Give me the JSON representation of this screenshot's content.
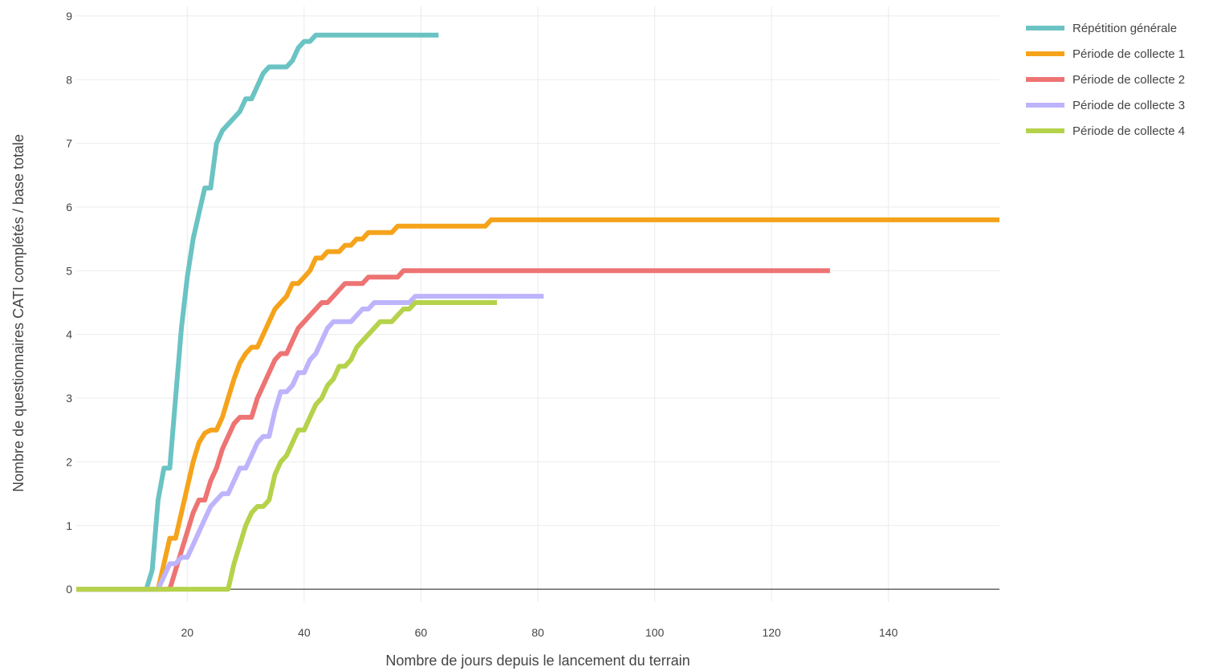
{
  "chart_data": {
    "type": "line",
    "title": "",
    "xlabel": "Nombre de jours depuis le lancement du terrain",
    "ylabel": "Nombre de questionnaires CATI complétés / base totale",
    "xlim": [
      1,
      159
    ],
    "ylim": [
      -0.2,
      9.15
    ],
    "xticks": [
      20,
      40,
      60,
      80,
      100,
      120,
      140
    ],
    "yticks": [
      0,
      1,
      2,
      3,
      4,
      5,
      6,
      7,
      8,
      9
    ],
    "grid": true,
    "legend_position": "top-right",
    "series": [
      {
        "name": "Répétition générale",
        "color": "#6bc3c3",
        "points": [
          [
            1,
            0
          ],
          [
            13,
            0
          ],
          [
            14,
            0.3
          ],
          [
            15,
            1.4
          ],
          [
            16,
            1.9
          ],
          [
            17,
            1.9
          ],
          [
            18,
            3.0
          ],
          [
            19,
            4.1
          ],
          [
            20,
            4.9
          ],
          [
            21,
            5.5
          ],
          [
            22,
            5.9
          ],
          [
            23,
            6.3
          ],
          [
            24,
            6.3
          ],
          [
            25,
            7.0
          ],
          [
            26,
            7.2
          ],
          [
            27,
            7.3
          ],
          [
            28,
            7.4
          ],
          [
            29,
            7.5
          ],
          [
            30,
            7.7
          ],
          [
            31,
            7.7
          ],
          [
            32,
            7.9
          ],
          [
            33,
            8.1
          ],
          [
            34,
            8.2
          ],
          [
            37,
            8.2
          ],
          [
            38,
            8.3
          ],
          [
            39,
            8.5
          ],
          [
            40,
            8.6
          ],
          [
            41,
            8.6
          ],
          [
            42,
            8.7
          ],
          [
            63,
            8.7
          ]
        ]
      },
      {
        "name": "Période de collecte 1",
        "color": "#f5a31b",
        "points": [
          [
            1,
            0
          ],
          [
            15,
            0
          ],
          [
            16,
            0.4
          ],
          [
            17,
            0.8
          ],
          [
            18,
            0.8
          ],
          [
            19,
            1.2
          ],
          [
            20,
            1.6
          ],
          [
            21,
            2.0
          ],
          [
            22,
            2.3
          ],
          [
            23,
            2.45
          ],
          [
            24,
            2.5
          ],
          [
            25,
            2.5
          ],
          [
            26,
            2.7
          ],
          [
            27,
            3.0
          ],
          [
            28,
            3.3
          ],
          [
            29,
            3.55
          ],
          [
            30,
            3.7
          ],
          [
            31,
            3.8
          ],
          [
            32,
            3.8
          ],
          [
            33,
            4.0
          ],
          [
            34,
            4.2
          ],
          [
            35,
            4.4
          ],
          [
            36,
            4.5
          ],
          [
            37,
            4.6
          ],
          [
            38,
            4.8
          ],
          [
            39,
            4.8
          ],
          [
            40,
            4.9
          ],
          [
            41,
            5.0
          ],
          [
            42,
            5.2
          ],
          [
            43,
            5.2
          ],
          [
            44,
            5.3
          ],
          [
            46,
            5.3
          ],
          [
            47,
            5.4
          ],
          [
            48,
            5.4
          ],
          [
            49,
            5.5
          ],
          [
            50,
            5.5
          ],
          [
            51,
            5.6
          ],
          [
            55,
            5.6
          ],
          [
            56,
            5.7
          ],
          [
            71,
            5.7
          ],
          [
            72,
            5.8
          ],
          [
            159,
            5.8
          ]
        ]
      },
      {
        "name": "Période de collecte 2",
        "color": "#ee7373",
        "points": [
          [
            1,
            0
          ],
          [
            17,
            0
          ],
          [
            18,
            0.3
          ],
          [
            19,
            0.6
          ],
          [
            20,
            0.9
          ],
          [
            21,
            1.2
          ],
          [
            22,
            1.4
          ],
          [
            23,
            1.4
          ],
          [
            24,
            1.7
          ],
          [
            25,
            1.9
          ],
          [
            26,
            2.2
          ],
          [
            27,
            2.4
          ],
          [
            28,
            2.6
          ],
          [
            29,
            2.7
          ],
          [
            31,
            2.7
          ],
          [
            32,
            3.0
          ],
          [
            33,
            3.2
          ],
          [
            34,
            3.4
          ],
          [
            35,
            3.6
          ],
          [
            36,
            3.7
          ],
          [
            37,
            3.7
          ],
          [
            38,
            3.9
          ],
          [
            39,
            4.1
          ],
          [
            40,
            4.2
          ],
          [
            41,
            4.3
          ],
          [
            42,
            4.4
          ],
          [
            43,
            4.5
          ],
          [
            44,
            4.5
          ],
          [
            45,
            4.6
          ],
          [
            46,
            4.7
          ],
          [
            47,
            4.8
          ],
          [
            50,
            4.8
          ],
          [
            51,
            4.9
          ],
          [
            56,
            4.9
          ],
          [
            57,
            5.0
          ],
          [
            130,
            5.0
          ]
        ]
      },
      {
        "name": "Période de collecte 3",
        "color": "#bdb4fc",
        "points": [
          [
            1,
            0
          ],
          [
            15,
            0
          ],
          [
            16,
            0.2
          ],
          [
            17,
            0.4
          ],
          [
            18,
            0.4
          ],
          [
            19,
            0.5
          ],
          [
            20,
            0.5
          ],
          [
            21,
            0.7
          ],
          [
            22,
            0.9
          ],
          [
            23,
            1.1
          ],
          [
            24,
            1.3
          ],
          [
            25,
            1.4
          ],
          [
            26,
            1.5
          ],
          [
            27,
            1.5
          ],
          [
            28,
            1.7
          ],
          [
            29,
            1.9
          ],
          [
            30,
            1.9
          ],
          [
            31,
            2.1
          ],
          [
            32,
            2.3
          ],
          [
            33,
            2.4
          ],
          [
            34,
            2.4
          ],
          [
            35,
            2.8
          ],
          [
            36,
            3.1
          ],
          [
            37,
            3.1
          ],
          [
            38,
            3.2
          ],
          [
            39,
            3.4
          ],
          [
            40,
            3.4
          ],
          [
            41,
            3.6
          ],
          [
            42,
            3.7
          ],
          [
            43,
            3.9
          ],
          [
            44,
            4.1
          ],
          [
            45,
            4.2
          ],
          [
            48,
            4.2
          ],
          [
            49,
            4.3
          ],
          [
            50,
            4.4
          ],
          [
            51,
            4.4
          ],
          [
            52,
            4.5
          ],
          [
            58,
            4.5
          ],
          [
            59,
            4.6
          ],
          [
            81,
            4.6
          ]
        ]
      },
      {
        "name": "Période de collecte 4",
        "color": "#b5d24b",
        "points": [
          [
            1,
            0
          ],
          [
            27,
            0
          ],
          [
            28,
            0.4
          ],
          [
            29,
            0.7
          ],
          [
            30,
            1.0
          ],
          [
            31,
            1.2
          ],
          [
            32,
            1.3
          ],
          [
            33,
            1.3
          ],
          [
            34,
            1.4
          ],
          [
            35,
            1.8
          ],
          [
            36,
            2.0
          ],
          [
            37,
            2.1
          ],
          [
            38,
            2.3
          ],
          [
            39,
            2.5
          ],
          [
            40,
            2.5
          ],
          [
            41,
            2.7
          ],
          [
            42,
            2.9
          ],
          [
            43,
            3.0
          ],
          [
            44,
            3.2
          ],
          [
            45,
            3.3
          ],
          [
            46,
            3.5
          ],
          [
            47,
            3.5
          ],
          [
            48,
            3.6
          ],
          [
            49,
            3.8
          ],
          [
            50,
            3.9
          ],
          [
            51,
            4.0
          ],
          [
            52,
            4.1
          ],
          [
            53,
            4.2
          ],
          [
            55,
            4.2
          ],
          [
            56,
            4.3
          ],
          [
            57,
            4.4
          ],
          [
            58,
            4.4
          ],
          [
            59,
            4.5
          ],
          [
            73,
            4.5
          ]
        ]
      }
    ]
  }
}
